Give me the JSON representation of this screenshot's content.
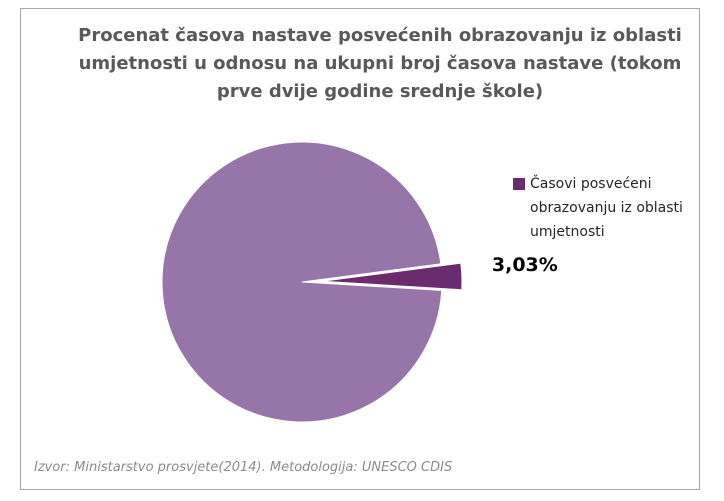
{
  "chart_data": {
    "type": "pie",
    "title": "Procenat časova nastave posvećenih obrazovanju iz oblasti umjetnosti u odnosu na ukupni broj časova nastave (tokom prve dvije godine srednje škole)",
    "categories": [
      null,
      "Časovi posvećeni obrazovanju iz oblasti umjetnosti"
    ],
    "values": [
      96.97,
      3.03
    ],
    "value_labels": [
      null,
      "3,03%"
    ],
    "colors": [
      "#9775a8",
      "#6a2b6f"
    ],
    "source": "Izvor: Ministarstvo prosvjete(2014). Metodologija: UNESCO CDIS"
  }
}
